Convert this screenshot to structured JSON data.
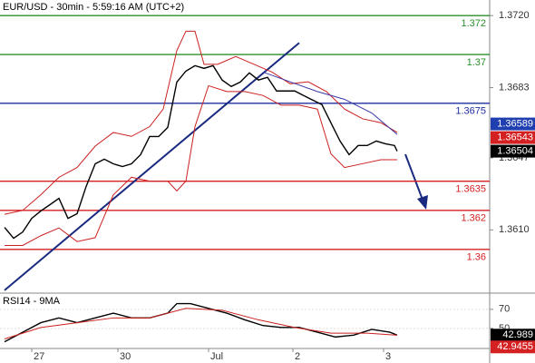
{
  "chart_data": [
    {
      "type": "line",
      "title": "EUR/USD - 30min - 5:59:16 AM (UTC+2)",
      "xlim": [
        0,
        135
      ],
      "ylim": [
        1.3578,
        1.3728
      ],
      "yticks": [
        {
          "value": 1.372,
          "label": "1.3720"
        },
        1.3683,
        1.3647,
        {
          "value": 1.361,
          "label": "1.3610"
        }
      ],
      "series": [
        {
          "color": "#000000",
          "x": [
            1.25,
            3.75,
            6.25,
            8.75,
            11.25,
            13.75,
            16.25,
            18.75,
            21.25,
            23.75,
            26.25,
            28.75,
            31.25,
            33.75,
            36.25,
            38.75,
            41.25,
            43.75,
            46.25,
            48.75,
            51.25,
            53.75,
            56.25,
            58.75,
            61.25,
            63.75,
            66.25,
            68.75,
            71.25,
            73.75,
            76.25,
            78.75,
            81.25,
            83.75,
            86.25,
            88.75,
            91.25,
            93.75,
            96.25,
            98.75,
            101.25,
            103.75,
            106.25,
            108.75,
            109.5
          ],
          "values": [
            1.36113,
            1.36057,
            1.36089,
            1.36159,
            1.36197,
            1.36229,
            1.36262,
            1.36159,
            1.36183,
            1.36323,
            1.36439,
            1.36463,
            1.36439,
            1.36425,
            1.36439,
            1.36486,
            1.36579,
            1.36579,
            1.36626,
            1.36859,
            1.36915,
            1.36943,
            1.36929,
            1.36943,
            1.36869,
            1.36836,
            1.36859,
            1.36906,
            1.36869,
            1.36883,
            1.36813,
            1.36813,
            1.36813,
            1.36789,
            1.36766,
            1.36743,
            1.36649,
            1.36556,
            1.36486,
            1.36533,
            1.36533,
            1.36556,
            1.36542,
            1.36533,
            1.36504
          ]
        },
        {
          "color": "#cc2020",
          "x": [
            1.25,
            6.25,
            11.25,
            16.25,
            21.25,
            26.25,
            31.25,
            36.25,
            41.25,
            45,
            48.75,
            51.25,
            53.75,
            56.25,
            60,
            65,
            70,
            75,
            80,
            85,
            90,
            95,
            100,
            105,
            109.5
          ],
          "values": [
            1.3618,
            1.362,
            1.3628,
            1.3637,
            1.3642,
            1.3653,
            1.366,
            1.3658,
            1.3663,
            1.3672,
            1.3702,
            1.3712,
            1.3712,
            1.3695,
            1.3695,
            1.3699,
            1.3695,
            1.3691,
            1.3685,
            1.3686,
            1.3681,
            1.3672,
            1.3667,
            1.3665,
            1.366
          ]
        },
        {
          "color": "#cc2020",
          "x": [
            1.25,
            6.25,
            11.25,
            16.25,
            21.25,
            26.25,
            31.25,
            36.25,
            41.25,
            46.25,
            48.75,
            51.25,
            53.75,
            57.5,
            62.5,
            67.5,
            72.5,
            77.5,
            82.5,
            87.5,
            91.25,
            95,
            100,
            105,
            109.5
          ],
          "values": [
            1.3602,
            1.3602,
            1.3607,
            1.3611,
            1.3604,
            1.3606,
            1.3628,
            1.3637,
            1.3635,
            1.3635,
            1.363,
            1.3635,
            1.3663,
            1.3684,
            1.3681,
            1.3681,
            1.3679,
            1.3674,
            1.3674,
            1.3672,
            1.3649,
            1.3642,
            1.3644,
            1.3646,
            1.3646
          ]
        },
        {
          "color": "#3a3aa8",
          "x": [
            72.5,
            80,
            87.5,
            95,
            102.5,
            109.5
          ],
          "values": [
            1.3691,
            1.3686,
            1.3681,
            1.3677,
            1.367,
            1.3659
          ]
        }
      ],
      "levels": [
        {
          "value": 1.372,
          "color": "#2b8f2b"
        },
        {
          "value": 1.37,
          "color": "#2b8f2b"
        },
        {
          "value": 1.3675,
          "color": "#1f2f9f"
        },
        {
          "value": 1.3635,
          "color": "#d42020"
        },
        {
          "value": 1.362,
          "color": "#d42020"
        },
        {
          "value": 1.36,
          "color": "#d42020"
        }
      ],
      "trendlines": [
        {
          "color": "#1a2a80",
          "x": [
            1.25,
            82.5
          ],
          "values": [
            1.3579,
            1.3706
          ]
        }
      ],
      "last_values": [
        {
          "value": 1.36589,
          "color": "#1f3fb0"
        },
        {
          "value": 1.36543,
          "color": "#d42020"
        },
        {
          "value": 1.36504,
          "color": "#000000"
        }
      ]
    },
    {
      "type": "line",
      "title": "RSI14 - 9MA",
      "xlim": [
        0,
        135
      ],
      "ylim": [
        29,
        86
      ],
      "yticks": [
        70,
        50
      ],
      "xticks": [
        {
          "value": 8.75,
          "label": "27"
        },
        {
          "value": 32.5,
          "label": "30"
        },
        {
          "value": 57.5,
          "label": "Jul"
        },
        {
          "value": 80.75,
          "label": "2"
        },
        {
          "value": 105.75,
          "label": "3"
        }
      ],
      "series": [
        {
          "color": "#000000",
          "x": [
            1.25,
            6.25,
            11.25,
            16.25,
            21.25,
            26.25,
            31.25,
            36.25,
            41.25,
            46.25,
            48.75,
            52.5,
            57.5,
            62.5,
            67.5,
            72.5,
            77.5,
            82.5,
            87.5,
            92.5,
            97.5,
            102.5,
            107.5,
            109.5
          ],
          "values": [
            36,
            46,
            56,
            61,
            56,
            61,
            66,
            61,
            61,
            66,
            76,
            76,
            71,
            66,
            59,
            53,
            51,
            51,
            46,
            41,
            43,
            49,
            46,
            42.989
          ]
        },
        {
          "color": "#cc2020",
          "x": [
            1.25,
            11.25,
            21.25,
            31.25,
            41.25,
            51.25,
            61.25,
            71.25,
            81.25,
            91.25,
            101.25,
            109.5
          ],
          "values": [
            39,
            51,
            56,
            61,
            61,
            71,
            69,
            59,
            51,
            45,
            45,
            42.9455
          ]
        }
      ],
      "last_values": [
        {
          "value": 42.989,
          "color": "#000000"
        },
        {
          "value": 42.9455,
          "color": "#d42020"
        }
      ]
    }
  ]
}
